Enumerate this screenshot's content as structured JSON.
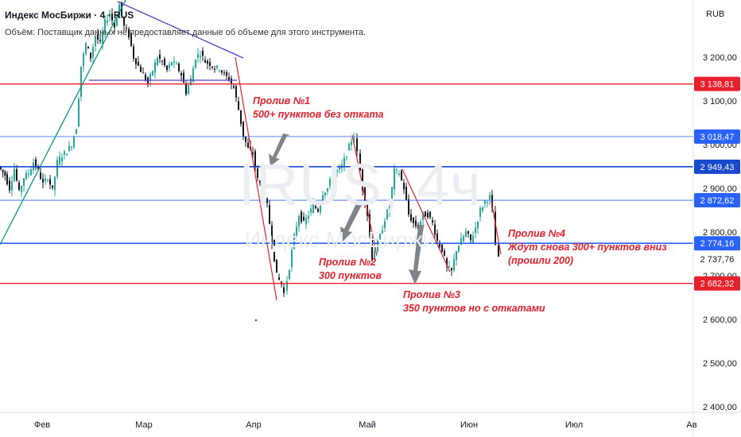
{
  "header": {
    "title": "Индекс МосБиржи · 4 · RUS",
    "volume_note": "Объём: Поставщик данных не предоставляет данные об объеме для этого инструмента."
  },
  "watermark": {
    "symbol": "IRUS, 4ч",
    "name": "Индекс МосБиржи"
  },
  "currency": "RUB",
  "chart_data": {
    "type": "candlestick",
    "y_axis": {
      "ticks": [
        3200,
        3100,
        3000,
        2900,
        2800,
        2700,
        2600,
        2500,
        2400
      ],
      "tick_labels": [
        "3 200,00",
        "3 100,00",
        "3 000,00",
        "2 900,00",
        "2 800,00",
        "2 700,00",
        "2 600,00",
        "2 500,00",
        "2 400,00"
      ],
      "ylim": [
        2390,
        3300
      ]
    },
    "x_axis": {
      "labels": [
        "Фев",
        "Мар",
        "Апр",
        "Май",
        "Июн",
        "Июл",
        "Ав"
      ]
    },
    "price_path": [
      [
        0,
        2950
      ],
      [
        8,
        2930
      ],
      [
        14,
        2900
      ],
      [
        20,
        2945
      ],
      [
        26,
        2890
      ],
      [
        32,
        2925
      ],
      [
        38,
        2935
      ],
      [
        44,
        2960
      ],
      [
        50,
        2940
      ],
      [
        56,
        2910
      ],
      [
        62,
        2925
      ],
      [
        68,
        2895
      ],
      [
        74,
        2960
      ],
      [
        80,
        2975
      ],
      [
        86,
        2985
      ],
      [
        92,
        3000
      ],
      [
        98,
        3040
      ],
      [
        104,
        3180
      ],
      [
        110,
        3230
      ],
      [
        116,
        3200
      ],
      [
        122,
        3250
      ],
      [
        128,
        3230
      ],
      [
        134,
        3280
      ],
      [
        140,
        3300
      ],
      [
        146,
        3270
      ],
      [
        152,
        3320
      ],
      [
        158,
        3270
      ],
      [
        164,
        3250
      ],
      [
        170,
        3200
      ],
      [
        176,
        3180
      ],
      [
        182,
        3160
      ],
      [
        188,
        3140
      ],
      [
        194,
        3170
      ],
      [
        200,
        3200
      ],
      [
        206,
        3190
      ],
      [
        212,
        3170
      ],
      [
        218,
        3190
      ],
      [
        224,
        3180
      ],
      [
        230,
        3160
      ],
      [
        236,
        3120
      ],
      [
        242,
        3150
      ],
      [
        248,
        3200
      ],
      [
        254,
        3210
      ],
      [
        260,
        3190
      ],
      [
        266,
        3185
      ],
      [
        272,
        3175
      ],
      [
        278,
        3175
      ],
      [
        284,
        3160
      ],
      [
        290,
        3150
      ],
      [
        296,
        3130
      ],
      [
        302,
        3080
      ],
      [
        308,
        3020
      ],
      [
        314,
        2990
      ],
      [
        320,
        2980
      ],
      [
        326,
        2920
      ],
      [
        332,
        2900
      ],
      [
        338,
        2860
      ],
      [
        344,
        2780
      ],
      [
        350,
        2700
      ],
      [
        356,
        2680
      ],
      [
        360,
        2660
      ],
      [
        366,
        2720
      ],
      [
        372,
        2790
      ],
      [
        378,
        2840
      ],
      [
        384,
        2820
      ],
      [
        390,
        2840
      ],
      [
        396,
        2860
      ],
      [
        402,
        2850
      ],
      [
        408,
        2890
      ],
      [
        414,
        2900
      ],
      [
        420,
        2930
      ],
      [
        426,
        2940
      ],
      [
        432,
        2950
      ],
      [
        438,
        2980
      ],
      [
        444,
        3010
      ],
      [
        448,
        3020
      ],
      [
        452,
        2980
      ],
      [
        458,
        2900
      ],
      [
        464,
        2840
      ],
      [
        470,
        2740
      ],
      [
        474,
        2760
      ],
      [
        480,
        2790
      ],
      [
        486,
        2830
      ],
      [
        492,
        2860
      ],
      [
        498,
        2940
      ],
      [
        504,
        2935
      ],
      [
        510,
        2900
      ],
      [
        516,
        2840
      ],
      [
        522,
        2820
      ],
      [
        528,
        2810
      ],
      [
        534,
        2840
      ],
      [
        540,
        2840
      ],
      [
        546,
        2820
      ],
      [
        552,
        2780
      ],
      [
        558,
        2760
      ],
      [
        564,
        2720
      ],
      [
        570,
        2710
      ],
      [
        576,
        2760
      ],
      [
        582,
        2780
      ],
      [
        588,
        2800
      ],
      [
        594,
        2780
      ],
      [
        600,
        2810
      ],
      [
        606,
        2850
      ],
      [
        612,
        2870
      ],
      [
        618,
        2880
      ],
      [
        622,
        2850
      ],
      [
        626,
        2770
      ],
      [
        630,
        2738
      ]
    ],
    "levels": [
      {
        "value": 3138.81,
        "label": "3 138,81",
        "color": "#e8202c",
        "style": "red"
      },
      {
        "value": 3018.47,
        "label": "3 018,47",
        "color": "#2962ff",
        "style": "thin-blue"
      },
      {
        "value": 2949.43,
        "label": "2 949,43",
        "color": "#1848cc",
        "style": "blue"
      },
      {
        "value": 2872.62,
        "label": "2 872,62",
        "color": "#2962ff",
        "style": "thin-blue"
      },
      {
        "value": 2774.16,
        "label": "2 774,16",
        "color": "#2962ff",
        "style": "blue"
      },
      {
        "value": 2682.32,
        "label": "2 682,32",
        "color": "#e8202c",
        "style": "red"
      }
    ],
    "last_price": {
      "value": 2737.76,
      "label": "2 737,76"
    },
    "annotations": [
      {
        "name": "Пролив №1",
        "lines": [
          "Пролив №1",
          "500+ пунктов без отката"
        ]
      },
      {
        "name": "Пролив №2",
        "lines": [
          "Пролив №2",
          "300 пунктов"
        ]
      },
      {
        "name": "Пролив №3",
        "lines": [
          "Пролив №3",
          "350 пунктов но с откатами"
        ]
      },
      {
        "name": "Пролив №4",
        "lines": [
          "Пролив №4",
          "Ждут снова 300+ пунктов вниз",
          "(прошли 200)"
        ]
      }
    ],
    "colors": {
      "up": "#26a69a",
      "down": "#131722",
      "red_line": "#e8202c",
      "blue_line": "#2962ff",
      "trend_green": "#089981",
      "trend_purple": "#5b3ec8",
      "arrow": "#7f8489"
    }
  }
}
